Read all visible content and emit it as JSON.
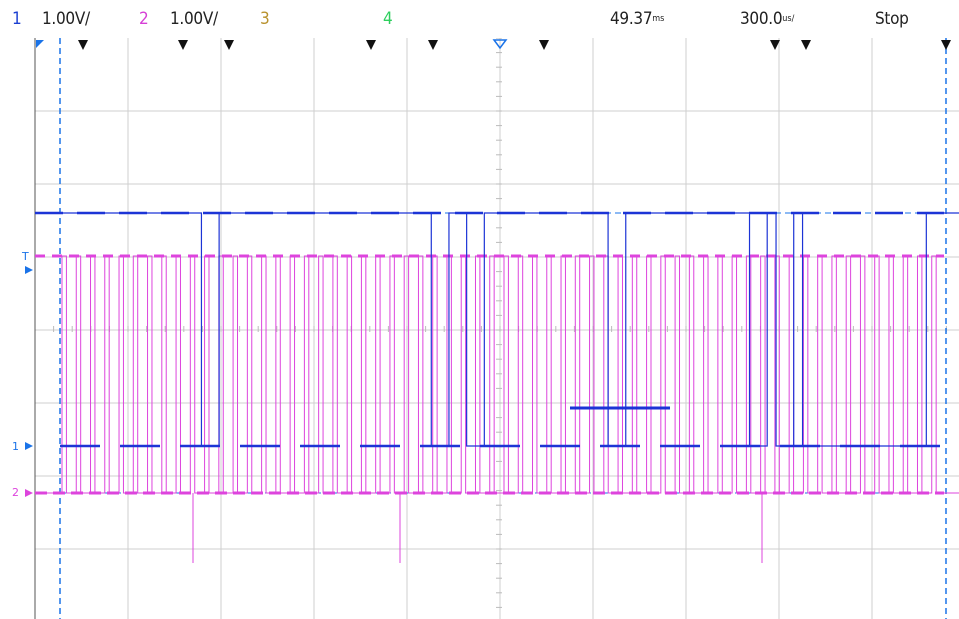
{
  "channels": [
    {
      "num": "1",
      "scale": "1.00V/",
      "color": "#1b3fd1"
    },
    {
      "num": "2",
      "scale": "1.00V/",
      "color": "#d63fd6"
    },
    {
      "num": "3",
      "scale": "",
      "color": "#b8922e"
    },
    {
      "num": "4",
      "scale": "",
      "color": "#2ecf5e"
    }
  ],
  "timebase": {
    "delay_value": "49.37",
    "delay_unit": "ms",
    "time_per_div_value": "300.0",
    "time_per_div_unit": "us/",
    "run_state": "Stop"
  },
  "markers": {
    "trigger": "T",
    "ch1_ground": "1",
    "ch2_ground": "2"
  },
  "colors": {
    "grid": "#cfcfcf",
    "ch1": "#1c34d6",
    "ch2": "#dd44dd",
    "cursor": "#1a73e8",
    "marker": "#111111"
  },
  "waveform_data": {
    "type": "digital",
    "ch1_levels": [
      1,
      1,
      1,
      1,
      1,
      1,
      1,
      1,
      1,
      1,
      1,
      1,
      1,
      1,
      1,
      1,
      0,
      0,
      1,
      1,
      1,
      1,
      1,
      1,
      1,
      1,
      1,
      1,
      1,
      1,
      1,
      1,
      1,
      1,
      1,
      1,
      1,
      1,
      1,
      1,
      1,
      1,
      0,
      0,
      1,
      1,
      0,
      0,
      1,
      1,
      1,
      1,
      1,
      1,
      1,
      1,
      1,
      1,
      1,
      1,
      1,
      1,
      0,
      0,
      1,
      1,
      1,
      1,
      1,
      1,
      1,
      1,
      1,
      1,
      1,
      1,
      1,
      1,
      0,
      0,
      1,
      0,
      0,
      1,
      0,
      0,
      0,
      0,
      0,
      0,
      0,
      0,
      0,
      0,
      0,
      0,
      0,
      0,
      1,
      1
    ],
    "ch2_clock_pulses": 62
  }
}
